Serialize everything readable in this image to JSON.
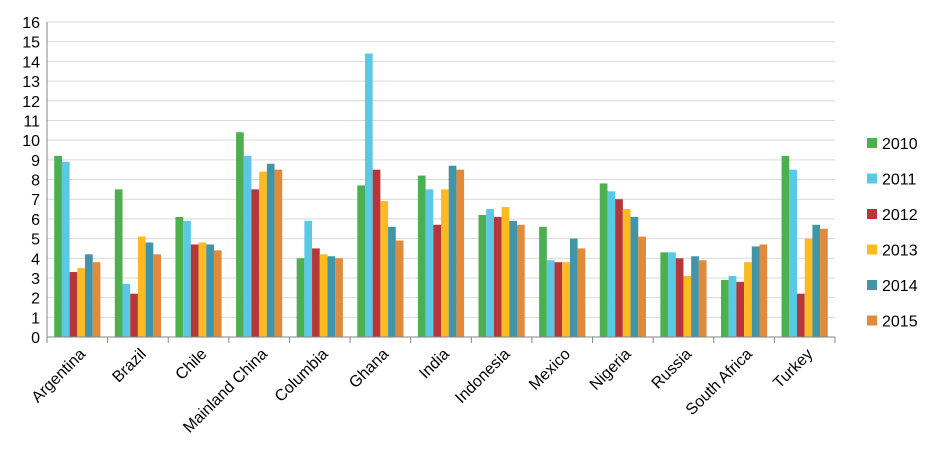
{
  "chart_data": {
    "type": "bar",
    "title": "",
    "xlabel": "",
    "ylabel": "",
    "ylim": [
      0,
      16
    ],
    "yticks": [
      0,
      1,
      2,
      3,
      4,
      5,
      6,
      7,
      8,
      9,
      10,
      11,
      12,
      13,
      14,
      15,
      16
    ],
    "grid": true,
    "legend_position": "right",
    "categories": [
      "Argentina",
      "Brazil",
      "Chile",
      "Mainland China",
      "Columbia",
      "Ghana",
      "India",
      "Indonesia",
      "Mexico",
      "Nigeria",
      "Russia",
      "South Africa",
      "Turkey"
    ],
    "series": [
      {
        "name": "2010",
        "color": "#4caf50",
        "values": [
          9.2,
          7.5,
          6.1,
          10.4,
          4.0,
          7.7,
          8.2,
          6.2,
          5.6,
          7.8,
          4.3,
          2.9,
          9.2
        ]
      },
      {
        "name": "2011",
        "color": "#5bc8e6",
        "values": [
          8.9,
          2.7,
          5.9,
          9.2,
          5.9,
          14.4,
          7.5,
          6.5,
          3.9,
          7.4,
          4.3,
          3.1,
          8.5
        ]
      },
      {
        "name": "2012",
        "color": "#b5373a",
        "values": [
          3.3,
          2.2,
          4.7,
          7.5,
          4.5,
          8.5,
          5.7,
          6.1,
          3.8,
          7.0,
          4.0,
          2.8,
          2.2
        ]
      },
      {
        "name": "2013",
        "color": "#fdba21",
        "values": [
          3.5,
          5.1,
          4.8,
          8.4,
          4.2,
          6.9,
          7.5,
          6.6,
          3.8,
          6.5,
          3.1,
          3.8,
          5.0
        ]
      },
      {
        "name": "2014",
        "color": "#4195a8",
        "values": [
          4.2,
          4.8,
          4.7,
          8.8,
          4.1,
          5.6,
          8.7,
          5.9,
          5.0,
          6.1,
          4.1,
          4.6,
          5.7
        ]
      },
      {
        "name": "2015",
        "color": "#e08a3c",
        "values": [
          3.8,
          4.2,
          4.4,
          8.5,
          4.0,
          4.9,
          8.5,
          5.7,
          4.5,
          5.1,
          3.9,
          4.7,
          5.5
        ]
      }
    ]
  }
}
